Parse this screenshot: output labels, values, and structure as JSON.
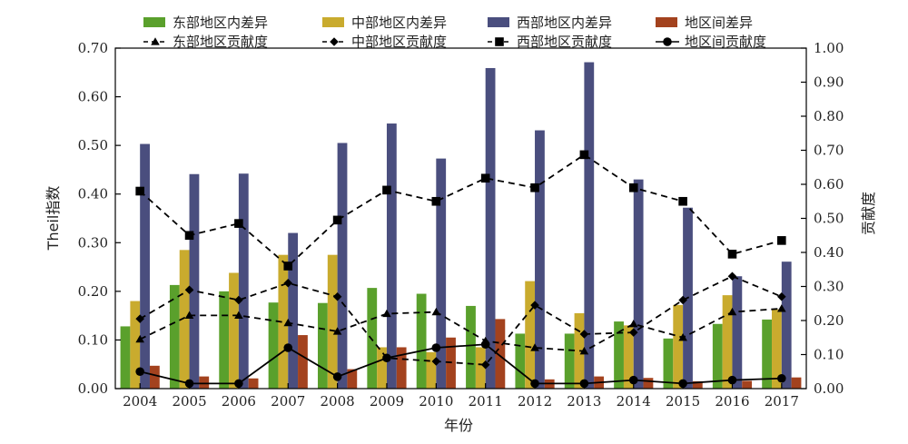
{
  "chart_data": {
    "type": "bar",
    "xlabel": "年份",
    "ylabel": "Theil指数",
    "ylabel_right": "贡献度",
    "categories": [
      "2004",
      "2005",
      "2006",
      "2007",
      "2008",
      "2009",
      "2010",
      "2011",
      "2012",
      "2013",
      "2014",
      "2015",
      "2016",
      "2017"
    ],
    "ylim": [
      0,
      0.7
    ],
    "ylim_right": [
      0,
      1.0
    ],
    "y_ticks": [
      "0.00",
      "0.10",
      "0.20",
      "0.30",
      "0.40",
      "0.50",
      "0.60",
      "0.70"
    ],
    "y_ticks_right": [
      "0.00",
      "0.10",
      "0.20",
      "0.30",
      "0.40",
      "0.50",
      "0.60",
      "0.70",
      "0.80",
      "0.90",
      "1.00"
    ],
    "grid": false,
    "legend_position": "top",
    "bar_series": [
      {
        "name": "东部地区内差异",
        "color": "#5aa02c",
        "values": [
          0.128,
          0.213,
          0.2,
          0.177,
          0.176,
          0.207,
          0.195,
          0.17,
          0.113,
          0.113,
          0.138,
          0.103,
          0.133,
          0.142
        ]
      },
      {
        "name": "中部地区内差异",
        "color": "#c9ab2e",
        "values": [
          0.18,
          0.285,
          0.238,
          0.275,
          0.275,
          0.085,
          0.075,
          0.085,
          0.221,
          0.155,
          0.13,
          0.172,
          0.192,
          0.163
        ]
      },
      {
        "name": "西部地区内差异",
        "color": "#4a4e7e",
        "values": [
          0.503,
          0.441,
          0.442,
          0.32,
          0.505,
          0.545,
          0.473,
          0.659,
          0.531,
          0.671,
          0.43,
          0.372,
          0.231,
          0.261
        ]
      },
      {
        "name": "地区间差异",
        "color": "#a3421e",
        "values": [
          0.047,
          0.025,
          0.021,
          0.11,
          0.04,
          0.085,
          0.105,
          0.143,
          0.019,
          0.025,
          0.022,
          0.015,
          0.016,
          0.023
        ]
      }
    ],
    "line_series": [
      {
        "name": "东部地区贡献度",
        "marker": "triangle",
        "style": "dashed",
        "values": [
          0.145,
          0.215,
          0.215,
          0.193,
          0.168,
          0.22,
          0.225,
          0.14,
          0.12,
          0.11,
          0.19,
          0.15,
          0.225,
          0.235
        ]
      },
      {
        "name": "中部地区贡献度",
        "marker": "diamond",
        "style": "dashed",
        "values": [
          0.205,
          0.29,
          0.26,
          0.31,
          0.27,
          0.09,
          0.08,
          0.07,
          0.245,
          0.16,
          0.165,
          0.26,
          0.33,
          0.27
        ]
      },
      {
        "name": "西部地区贡献度",
        "marker": "square",
        "style": "dashed",
        "values": [
          0.58,
          0.45,
          0.485,
          0.36,
          0.495,
          0.583,
          0.55,
          0.618,
          0.59,
          0.687,
          0.59,
          0.55,
          0.395,
          0.435
        ]
      },
      {
        "name": "地区间贡献度",
        "marker": "circle",
        "style": "solid",
        "values": [
          0.05,
          0.015,
          0.015,
          0.12,
          0.035,
          0.09,
          0.12,
          0.13,
          0.015,
          0.015,
          0.025,
          0.015,
          0.025,
          0.03
        ]
      }
    ]
  }
}
